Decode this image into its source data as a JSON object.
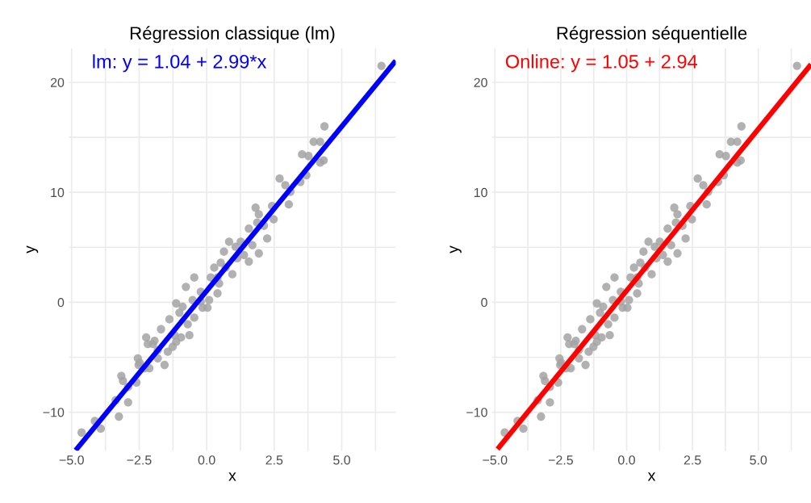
{
  "chart_data": [
    {
      "type": "scatter",
      "title": "Régression classique (lm)",
      "xlabel": "x",
      "ylabel": "y",
      "xlim": [
        -5.1,
        7.0
      ],
      "ylim": [
        -13.5,
        23.1
      ],
      "xticks": [
        {
          "value": -5.0,
          "label": "−5.0"
        },
        {
          "value": -3.75,
          "label": null
        },
        {
          "value": -2.5,
          "label": "−2.5"
        },
        {
          "value": -1.25,
          "label": null
        },
        {
          "value": 0.0,
          "label": "0.0"
        },
        {
          "value": 1.25,
          "label": null
        },
        {
          "value": 2.5,
          "label": "2.5"
        },
        {
          "value": 3.75,
          "label": null
        },
        {
          "value": 5.0,
          "label": "5.0"
        },
        {
          "value": 6.25,
          "label": null
        }
      ],
      "yticks": [
        {
          "value": -10,
          "label": "−10"
        },
        {
          "value": -5,
          "label": null
        },
        0,
        {
          "value": 5,
          "label": null
        },
        10,
        {
          "value": 15,
          "label": null
        },
        20
      ],
      "grid": true,
      "series": [
        {
          "marker": "circle",
          "color": "#a3a3a3",
          "x": [
            -4.63,
            -4.14,
            -3.92,
            -3.25,
            -3.37,
            -2.91,
            -3.16,
            -3.1,
            -2.91,
            -2.55,
            -2.52,
            -2.6,
            -2.3,
            -2.12,
            -2.18,
            -2.24,
            -1.99,
            -1.93,
            -1.81,
            -1.56,
            -1.69,
            -1.44,
            -1.38,
            -1.26,
            -1.13,
            -1.13,
            -0.95,
            -0.64,
            -1.01,
            -0.77,
            -0.7,
            -0.46,
            -0.46,
            -0.52,
            -0.22,
            -0.15,
            0.03,
            0.09,
            0.15,
            0.4,
            0.46,
            0.52,
            0.64,
            0.83,
            0.95,
            1.07,
            1.26,
            1.38,
            1.56,
            1.56,
            1.69,
            1.93,
            1.81,
            1.93,
            2.24,
            2.12,
            2.48,
            2.42,
            2.7,
            2.91,
            3.04,
            3.1,
            3.47,
            3.53,
            3.69,
            3.77,
            3.96,
            4.2,
            4.2,
            4.33,
            4.36,
            6.47,
            0.4,
            0.28,
            0.7,
            -0.22,
            -0.89,
            -1.19,
            -1.81,
            -2.48,
            1.13,
            1.87
          ],
          "values": [
            -11.85,
            -10.8,
            -11.5,
            -10.4,
            -8.9,
            -9.1,
            -6.7,
            -7.15,
            -7.7,
            -5.1,
            -5.7,
            -7.3,
            -6.0,
            -6.0,
            -3.8,
            -3.2,
            -3.8,
            -3.5,
            -5.1,
            -5.7,
            -2.45,
            -4.5,
            -1.55,
            -4.05,
            -3.6,
            -0.1,
            -3.2,
            -3.0,
            -0.95,
            1.4,
            -2.0,
            -1.4,
            2.25,
            0.2,
            0.95,
            -0.5,
            -0.5,
            0.2,
            2.25,
            0.8,
            1.7,
            3.6,
            4.6,
            5.5,
            2.55,
            5.05,
            5.5,
            4.3,
            3.7,
            6.7,
            5.2,
            4.45,
            8.6,
            8.0,
            5.8,
            6.95,
            7.55,
            8.75,
            11.25,
            10.65,
            8.9,
            10.05,
            10.95,
            13.45,
            11.55,
            13.3,
            14.6,
            14.6,
            12.7,
            12.9,
            16.0,
            21.5,
            2.25,
            3.15,
            3.15,
            0.05,
            -0.4,
            -3.0,
            -4.35,
            -5.5,
            4.0,
            7.25
          ]
        },
        {
          "type": "line",
          "name": "lm: y = 1.04 + 2.99*x",
          "color": "#0000ff",
          "x": [
            -4.85,
            7.0
          ],
          "values": [
            -13.46,
            21.97
          ]
        }
      ]
    },
    {
      "type": "scatter",
      "title": "Régression séquentielle",
      "xlabel": "x",
      "ylabel": "y",
      "xlim": [
        -5.1,
        7.0
      ],
      "ylim": [
        -13.5,
        23.1
      ],
      "xticks": [
        {
          "value": -5.0,
          "label": "−5.0"
        },
        {
          "value": -3.75,
          "label": null
        },
        {
          "value": -2.5,
          "label": "−2.5"
        },
        {
          "value": -1.25,
          "label": null
        },
        {
          "value": 0.0,
          "label": "0.0"
        },
        {
          "value": 1.25,
          "label": null
        },
        {
          "value": 2.5,
          "label": "2.5"
        },
        {
          "value": 3.75,
          "label": null
        },
        {
          "value": 5.0,
          "label": "5.0"
        },
        {
          "value": 6.25,
          "label": null
        }
      ],
      "yticks": [
        {
          "value": -10,
          "label": "−10"
        },
        {
          "value": -5,
          "label": null
        },
        0,
        {
          "value": 5,
          "label": null
        },
        10,
        {
          "value": 15,
          "label": null
        },
        20
      ],
      "grid": true,
      "series": [
        {
          "marker": "circle",
          "color": "#a3a3a3",
          "x": [
            -4.63,
            -4.14,
            -3.92,
            -3.25,
            -3.37,
            -2.91,
            -3.16,
            -3.1,
            -2.91,
            -2.55,
            -2.52,
            -2.6,
            -2.3,
            -2.12,
            -2.18,
            -2.24,
            -1.99,
            -1.93,
            -1.81,
            -1.56,
            -1.69,
            -1.44,
            -1.38,
            -1.26,
            -1.13,
            -1.13,
            -0.95,
            -0.64,
            -1.01,
            -0.77,
            -0.7,
            -0.46,
            -0.46,
            -0.52,
            -0.22,
            -0.15,
            0.03,
            0.09,
            0.15,
            0.4,
            0.46,
            0.52,
            0.64,
            0.83,
            0.95,
            1.07,
            1.26,
            1.38,
            1.56,
            1.56,
            1.69,
            1.93,
            1.81,
            1.93,
            2.24,
            2.12,
            2.48,
            2.42,
            2.7,
            2.91,
            3.04,
            3.1,
            3.47,
            3.53,
            3.69,
            3.77,
            3.96,
            4.2,
            4.2,
            4.33,
            4.36,
            6.47,
            0.4,
            0.28,
            0.7,
            -0.22,
            -0.89,
            -1.19,
            -1.81,
            -2.48,
            1.13,
            1.87
          ],
          "values": [
            -11.85,
            -10.8,
            -11.5,
            -10.4,
            -8.9,
            -9.1,
            -6.7,
            -7.15,
            -7.7,
            -5.1,
            -5.7,
            -7.3,
            -6.0,
            -6.0,
            -3.8,
            -3.2,
            -3.8,
            -3.5,
            -5.1,
            -5.7,
            -2.45,
            -4.5,
            -1.55,
            -4.05,
            -3.6,
            -0.1,
            -3.2,
            -3.0,
            -0.95,
            1.4,
            -2.0,
            -1.4,
            2.25,
            0.2,
            0.95,
            -0.5,
            -0.5,
            0.2,
            2.25,
            0.8,
            1.7,
            3.6,
            4.6,
            5.5,
            2.55,
            5.05,
            5.5,
            4.3,
            3.7,
            6.7,
            5.2,
            4.45,
            8.6,
            8.0,
            5.8,
            6.95,
            7.55,
            8.75,
            11.25,
            10.65,
            8.9,
            10.05,
            10.95,
            13.45,
            11.55,
            13.3,
            14.6,
            14.6,
            12.7,
            12.9,
            16.0,
            21.5,
            2.25,
            3.15,
            3.15,
            0.05,
            -0.4,
            -3.0,
            -4.35,
            -5.5,
            4.0,
            7.25
          ]
        },
        {
          "type": "line",
          "name": "Online: y = 1.05 + 2.94",
          "color": "#ff0000",
          "x": [
            -4.9,
            7.0
          ],
          "values": [
            -13.36,
            21.63
          ]
        }
      ]
    }
  ]
}
